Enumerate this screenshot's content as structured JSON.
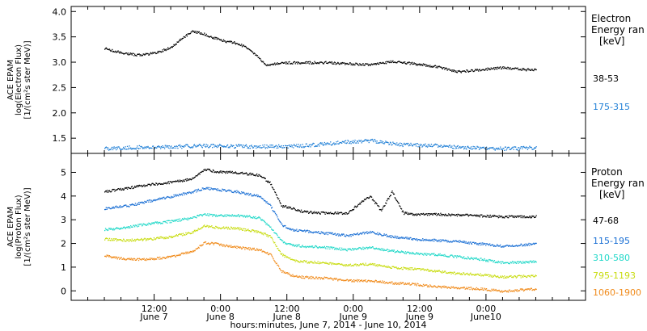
{
  "chart_data": [
    {
      "type": "scatter",
      "panel": "electron",
      "ylabel_lines": [
        "ACE EPAM",
        "log(Electron Flux)",
        "[1/(cm²s ster MeV)]"
      ],
      "ylim": [
        1.2,
        4.1
      ],
      "yticks": [
        "1.5",
        "2.0",
        "2.5",
        "3.0",
        "3.5",
        "4.0"
      ],
      "ytick_values": [
        1.5,
        2.0,
        2.5,
        3.0,
        3.5,
        4.0
      ],
      "legend_title_lines": [
        "Electron",
        "Energy ran",
        "[keV]"
      ],
      "series": [
        {
          "name": "38-53",
          "color": "#000000",
          "x": [
            0,
            2,
            4,
            6,
            8,
            10,
            12,
            14,
            16,
            18,
            20,
            22,
            24,
            26,
            28,
            29,
            30,
            31,
            33,
            36,
            40,
            44,
            48,
            52,
            56,
            60,
            64,
            68,
            72,
            76,
            78
          ],
          "y": [
            3.28,
            3.22,
            3.18,
            3.15,
            3.17,
            3.22,
            3.3,
            3.48,
            3.62,
            3.56,
            3.48,
            3.42,
            3.38,
            3.28,
            3.08,
            2.95,
            2.96,
            2.98,
            3.0,
            3.0,
            3.0,
            2.98,
            2.96,
            3.02,
            2.98,
            2.92,
            2.82,
            2.86,
            2.9,
            2.86,
            2.86
          ]
        },
        {
          "name": "175-315",
          "color": "#1f7fd6",
          "x": [
            0,
            6,
            12,
            18,
            24,
            30,
            36,
            42,
            48,
            54,
            60,
            66,
            72,
            78
          ],
          "y": [
            1.3,
            1.33,
            1.34,
            1.36,
            1.35,
            1.34,
            1.36,
            1.42,
            1.46,
            1.38,
            1.36,
            1.32,
            1.3,
            1.32
          ]
        }
      ]
    },
    {
      "type": "scatter",
      "panel": "proton",
      "ylabel_lines": [
        "ACE EPAM",
        "log(Proton Flux)",
        "[1/(cm²s ster MeV)]"
      ],
      "ylim": [
        -0.4,
        5.8
      ],
      "yticks": [
        "0",
        "1",
        "2",
        "3",
        "4",
        "5"
      ],
      "ytick_values": [
        0,
        1,
        2,
        3,
        4,
        5
      ],
      "legend_title_lines": [
        "Proton",
        "Energy ran",
        "[keV]"
      ],
      "series": [
        {
          "name": "47-68",
          "color": "#000000",
          "x": [
            0,
            4,
            8,
            12,
            16,
            18,
            20,
            24,
            28,
            30,
            32,
            34,
            36,
            40,
            44,
            46,
            48,
            50,
            52,
            54,
            56,
            60,
            64,
            68,
            72,
            78
          ],
          "y": [
            4.2,
            4.35,
            4.5,
            4.6,
            4.75,
            5.15,
            5.05,
            5.0,
            4.9,
            4.55,
            3.6,
            3.5,
            3.35,
            3.3,
            3.3,
            3.7,
            4.0,
            3.4,
            4.2,
            3.3,
            3.25,
            3.25,
            3.22,
            3.18,
            3.15,
            3.15
          ]
        },
        {
          "name": "115-195",
          "color": "#1a6fd4",
          "x": [
            0,
            4,
            8,
            12,
            16,
            18,
            20,
            24,
            28,
            30,
            32,
            34,
            36,
            40,
            44,
            48,
            52,
            56,
            60,
            64,
            68,
            72,
            78
          ],
          "y": [
            3.5,
            3.6,
            3.8,
            4.0,
            4.2,
            4.35,
            4.3,
            4.2,
            4.0,
            3.6,
            2.8,
            2.6,
            2.55,
            2.45,
            2.35,
            2.5,
            2.3,
            2.2,
            2.15,
            2.1,
            2.0,
            1.9,
            2.0
          ]
        },
        {
          "name": "310-580",
          "color": "#20d8c8",
          "x": [
            0,
            4,
            8,
            12,
            16,
            18,
            20,
            24,
            28,
            30,
            32,
            34,
            36,
            40,
            44,
            48,
            52,
            56,
            60,
            64,
            68,
            72,
            78
          ],
          "y": [
            2.6,
            2.7,
            2.85,
            2.95,
            3.1,
            3.25,
            3.2,
            3.2,
            3.1,
            2.7,
            2.1,
            1.95,
            1.9,
            1.85,
            1.75,
            1.85,
            1.7,
            1.6,
            1.55,
            1.45,
            1.35,
            1.2,
            1.25
          ]
        },
        {
          "name": "795-1193",
          "color": "#c8dc10",
          "x": [
            0,
            4,
            8,
            12,
            16,
            18,
            20,
            24,
            28,
            30,
            32,
            34,
            36,
            40,
            44,
            48,
            52,
            56,
            60,
            64,
            68,
            72,
            78
          ],
          "y": [
            2.2,
            2.15,
            2.2,
            2.3,
            2.5,
            2.75,
            2.7,
            2.65,
            2.5,
            2.3,
            1.55,
            1.3,
            1.25,
            1.2,
            1.1,
            1.15,
            1.0,
            0.95,
            0.85,
            0.75,
            0.7,
            0.6,
            0.65
          ]
        },
        {
          "name": "1060-1900",
          "color": "#f08a1a",
          "x": [
            0,
            4,
            8,
            12,
            16,
            18,
            20,
            24,
            28,
            30,
            32,
            34,
            36,
            40,
            44,
            48,
            52,
            56,
            60,
            64,
            68,
            72,
            78
          ],
          "y": [
            1.5,
            1.35,
            1.35,
            1.45,
            1.7,
            2.05,
            2.0,
            1.85,
            1.75,
            1.55,
            0.85,
            0.65,
            0.6,
            0.55,
            0.45,
            0.45,
            0.35,
            0.3,
            0.2,
            0.15,
            0.1,
            0.0,
            0.1
          ]
        }
      ]
    }
  ],
  "x_axis": {
    "tick_labels_top": [
      "12:00",
      "0:00",
      "12:00",
      "0:00",
      "12:00",
      "0:00"
    ],
    "tick_labels_bottom": [
      "June 7",
      "June 8",
      "June 8",
      "June 9",
      "June 9",
      "June10"
    ],
    "tick_hours": [
      9,
      21,
      33,
      45,
      57,
      69
    ],
    "xlim": [
      -6,
      87
    ],
    "xlabel": "hours:minutes, June  7, 2014 - June 10, 2014"
  }
}
